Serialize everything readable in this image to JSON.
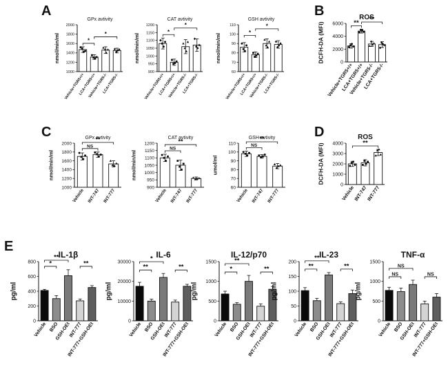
{
  "panel_letters": [
    "A",
    "B",
    "C",
    "D",
    "E"
  ],
  "chart_data": [
    {
      "id": "A1",
      "panel": "A",
      "type": "bar",
      "title": "GPx avtivity",
      "ylabel": "nmol/min/ml",
      "ylim": [
        1000,
        2000
      ],
      "yticks": [
        1000,
        1200,
        1400,
        1600,
        1800,
        2000
      ],
      "categories": [
        "Vehicle+TGR5+/+",
        "LCA+TGR5+/+",
        "Vehicle+TGR5-/-",
        "LCA+TGR5-/-"
      ],
      "values": [
        1470,
        1310,
        1460,
        1450
      ],
      "errors": [
        60,
        50,
        70,
        50
      ],
      "points": [
        [
          1520,
          1490,
          1420,
          1440
        ],
        [
          1350,
          1300,
          1280,
          1310
        ],
        [
          1510,
          1470,
          1400,
          1470
        ],
        [
          1480,
          1420,
          1450,
          1470
        ]
      ],
      "sig": [
        {
          "from": 0,
          "to": 1,
          "label": "*",
          "level": 0
        },
        {
          "from": 1,
          "to": 3,
          "label": "*",
          "level": 1
        }
      ]
    },
    {
      "id": "A2",
      "panel": "A",
      "type": "bar",
      "title": "CAT avtivity",
      "ylabel": "nmol/min/ml",
      "ylim": [
        900,
        1200
      ],
      "yticks": [
        900,
        950,
        1000,
        1050,
        1100,
        1150,
        1200
      ],
      "categories": [
        "Vehicle+TGR5+/+",
        "LCA+TGR5+/+",
        "Vehicle+TGR5-/-",
        "LCA+TGR5-/-"
      ],
      "values": [
        1080,
        960,
        1060,
        1070
      ],
      "errors": [
        35,
        20,
        45,
        40
      ],
      "points": [
        [
          1100,
          1080,
          1060,
          1090
        ],
        [
          975,
          950,
          955,
          965
        ],
        [
          1080,
          1050,
          1030,
          1090
        ],
        [
          1110,
          1060,
          1050,
          1070
        ]
      ],
      "sig": [
        {
          "from": 0,
          "to": 1,
          "label": "*",
          "level": 0
        },
        {
          "from": 1,
          "to": 3,
          "label": "*",
          "level": 1
        }
      ]
    },
    {
      "id": "A3",
      "panel": "A",
      "type": "bar",
      "title": "GSH avtivity",
      "ylabel": "nmol/min/ml",
      "ylim": [
        60,
        110
      ],
      "yticks": [
        60,
        70,
        80,
        90,
        100,
        110
      ],
      "categories": [
        "Vehicle+TGR5+/+",
        "LCA+TGR5+/+",
        "Vehicle+TGR5-/-",
        "LCA+TGR5-/-"
      ],
      "values": [
        86,
        78,
        90,
        89
      ],
      "errors": [
        5,
        3,
        5,
        4
      ],
      "points": [
        [
          90,
          84,
          82,
          88
        ],
        [
          80,
          76,
          77,
          79
        ],
        [
          94,
          88,
          86,
          92
        ],
        [
          92,
          86,
          88,
          90
        ]
      ],
      "sig": [
        {
          "from": 0,
          "to": 1,
          "label": "*",
          "level": 0
        },
        {
          "from": 1,
          "to": 3,
          "label": "*",
          "level": 1
        }
      ]
    },
    {
      "id": "B",
      "panel": "B",
      "type": "bar",
      "title": "ROS",
      "ylabel": "DCFH-DA (MFI)",
      "ylim": [
        0,
        6000
      ],
      "yticks": [
        0,
        2000,
        4000,
        6000
      ],
      "categories": [
        "Vehicle+TGR5+/+",
        "LCA+TGR5+/+",
        "Vehicle+TGR5-/-",
        "LCA+TGR5-/-"
      ],
      "values": [
        2500,
        4800,
        2800,
        2700
      ],
      "errors": [
        350,
        300,
        400,
        450
      ],
      "points": [
        [
          2300,
          2600,
          2800,
          2400
        ],
        [
          4600,
          5000,
          4900,
          4700
        ],
        [
          2500,
          3200,
          2700,
          2900
        ],
        [
          2200,
          3000,
          2800,
          2600
        ]
      ],
      "sig": [
        {
          "from": 0,
          "to": 1,
          "label": "**",
          "level": 0
        },
        {
          "from": 1,
          "to": 3,
          "label": "**",
          "level": 1
        }
      ]
    },
    {
      "id": "C1",
      "panel": "C",
      "type": "bar",
      "title": "GPx avtivity",
      "ylabel": "nmol/min/ml",
      "ylim": [
        1000,
        2000
      ],
      "yticks": [
        1000,
        1200,
        1400,
        1600,
        1800,
        2000
      ],
      "categories": [
        "Vehicle",
        "INT-747",
        "INT-777"
      ],
      "values": [
        1700,
        1740,
        1530
      ],
      "errors": [
        80,
        60,
        70
      ],
      "points": [
        [
          1780,
          1690,
          1640,
          1720
        ],
        [
          1790,
          1750,
          1700,
          1740
        ],
        [
          1600,
          1500,
          1490,
          1540
        ]
      ],
      "sig": [
        {
          "from": 0,
          "to": 1,
          "label": "NS",
          "level": 0
        },
        {
          "from": 0,
          "to": 2,
          "label": "**",
          "level": 1
        }
      ]
    },
    {
      "id": "C2",
      "panel": "C",
      "type": "bar",
      "title": "CAT avtivity",
      "ylabel": "nmol/min/ml",
      "ylim": [
        900,
        1200
      ],
      "yticks": [
        900,
        950,
        1000,
        1050,
        1100,
        1150,
        1200
      ],
      "categories": [
        "Vehicle",
        "INT-747",
        "INT-777"
      ],
      "values": [
        1100,
        1050,
        960
      ],
      "errors": [
        25,
        35,
        10
      ],
      "points": [
        [
          1120,
          1100,
          1080,
          1110
        ],
        [
          1080,
          1040,
          1020,
          1060
        ],
        [
          965,
          955,
          958,
          962
        ]
      ],
      "sig": [
        {
          "from": 0,
          "to": 1,
          "label": "NS",
          "level": 0
        },
        {
          "from": 0,
          "to": 2,
          "label": "**",
          "level": 1
        }
      ]
    },
    {
      "id": "C3",
      "panel": "C",
      "type": "bar",
      "title": "GSH avtivity",
      "ylabel": "umol/ml",
      "ylim": [
        60,
        110
      ],
      "yticks": [
        60,
        70,
        80,
        90,
        100,
        110
      ],
      "categories": [
        "Vehicle",
        "INT-747",
        "INT-777"
      ],
      "values": [
        98,
        95,
        84
      ],
      "errors": [
        3,
        2,
        3
      ],
      "points": [
        [
          100,
          98,
          96,
          99
        ],
        [
          96,
          94,
          95,
          97
        ],
        [
          86,
          82,
          84,
          85
        ]
      ],
      "sig": [
        {
          "from": 0,
          "to": 1,
          "label": "NS",
          "level": 0
        },
        {
          "from": 0,
          "to": 2,
          "label": "**",
          "level": 1
        }
      ]
    },
    {
      "id": "D",
      "panel": "D",
      "type": "bar",
      "title": "ROS",
      "ylabel": "DCFH-DA (MFI)",
      "ylim": [
        0,
        4000
      ],
      "yticks": [
        0,
        1000,
        2000,
        3000,
        4000
      ],
      "categories": [
        "Vehicle",
        "INT-747",
        "INT-777"
      ],
      "values": [
        2000,
        2100,
        3100
      ],
      "errors": [
        250,
        300,
        300
      ],
      "points": [
        [
          1800,
          2100,
          2200,
          1900
        ],
        [
          1900,
          2300,
          2000,
          2200
        ],
        [
          2800,
          3300,
          3400,
          2900
        ]
      ],
      "sig": [
        {
          "from": 0,
          "to": 2,
          "label": "**",
          "level": 0
        }
      ]
    },
    {
      "id": "E1",
      "panel": "E",
      "type": "bar",
      "title": "IL-1β",
      "ylabel": "pg/ml",
      "ylim": [
        0,
        800
      ],
      "yticks": [
        0,
        200,
        400,
        600,
        800
      ],
      "categories": [
        "Vehicle",
        "BSO",
        "GSH-OEt",
        "INT-777",
        "INT-777+GSH-OEt"
      ],
      "values": [
        410,
        300,
        610,
        270,
        450
      ],
      "errors": [
        15,
        40,
        80,
        25,
        25
      ],
      "sig": [
        {
          "from": 0,
          "to": 1,
          "label": "*",
          "level": 0
        },
        {
          "from": 0,
          "to": 2,
          "label": "**",
          "level": 1
        },
        {
          "from": 3,
          "to": 4,
          "label": "**",
          "level": 0
        }
      ]
    },
    {
      "id": "E2",
      "panel": "E",
      "type": "bar",
      "title": "IL-6",
      "ylabel": "pg/ml",
      "ylim": [
        0,
        30000
      ],
      "yticks": [
        0,
        10000,
        20000,
        30000
      ],
      "categories": [
        "Vehicle",
        "BSO",
        "GSH-OEt",
        "INT-777",
        "INT-777+GSH-OEt"
      ],
      "values": [
        17500,
        10000,
        22000,
        9500,
        17500
      ],
      "errors": [
        2000,
        1000,
        2000,
        1000,
        1000
      ],
      "sig": [
        {
          "from": 0,
          "to": 1,
          "label": "**",
          "level": 0
        },
        {
          "from": 0,
          "to": 2,
          "label": "*",
          "level": 1
        },
        {
          "from": 3,
          "to": 4,
          "label": "**",
          "level": 0
        }
      ]
    },
    {
      "id": "E3",
      "panel": "E",
      "type": "bar",
      "title": "IL-12/p70",
      "ylabel": "pg/ml",
      "ylim": [
        0,
        1500
      ],
      "yticks": [
        0,
        500,
        1000,
        1500
      ],
      "categories": [
        "Vehicle",
        "BSO",
        "GSH-OEt",
        "INT-777",
        "INT-777+GSH-OEt"
      ],
      "values": [
        680,
        420,
        1000,
        370,
        800
      ],
      "errors": [
        70,
        40,
        150,
        60,
        70
      ],
      "sig": [
        {
          "from": 0,
          "to": 1,
          "label": "*",
          "level": 0
        },
        {
          "from": 0,
          "to": 2,
          "label": "**",
          "level": 1
        },
        {
          "from": 3,
          "to": 4,
          "label": "**",
          "level": 0
        }
      ]
    },
    {
      "id": "E4",
      "panel": "E",
      "type": "bar",
      "title": "IL-23",
      "ylabel": "pg/ml",
      "ylim": [
        0,
        200
      ],
      "yticks": [
        0,
        50,
        100,
        150,
        200
      ],
      "categories": [
        "Vehicle",
        "BSO",
        "GSH-OEt",
        "INT-777",
        "INT-777+GSH-OEt"
      ],
      "values": [
        102,
        68,
        155,
        58,
        92
      ],
      "errors": [
        10,
        8,
        8,
        6,
        12
      ],
      "sig": [
        {
          "from": 0,
          "to": 1,
          "label": "**",
          "level": 0
        },
        {
          "from": 0,
          "to": 2,
          "label": "**",
          "level": 1
        },
        {
          "from": 3,
          "to": 4,
          "label": "**",
          "level": 0
        }
      ]
    },
    {
      "id": "E5",
      "panel": "E",
      "type": "bar",
      "title": "TNF-α",
      "ylabel": "pg/ml",
      "ylim": [
        0,
        1500
      ],
      "yticks": [
        0,
        500,
        1000,
        1500
      ],
      "categories": [
        "Vehicle",
        "BSO",
        "GSH-OEt",
        "INT-777",
        "INT-777+GSH-OEt"
      ],
      "values": [
        770,
        740,
        920,
        430,
        600
      ],
      "errors": [
        80,
        90,
        110,
        70,
        90
      ],
      "sig": [
        {
          "from": 0,
          "to": 1,
          "label": "NS",
          "level": 0
        },
        {
          "from": 0,
          "to": 2,
          "label": "NS",
          "level": 1
        },
        {
          "from": 3,
          "to": 4,
          "label": "NS",
          "level": 0
        }
      ]
    }
  ],
  "colors": {
    "ink": "#111111",
    "panel_A_fill": "#ffffff",
    "panel_E_fills": [
      "#0a0a0a",
      "#8c8c8c",
      "#7a7a7a",
      "#d4d4d4",
      "#5e5e5e"
    ]
  }
}
